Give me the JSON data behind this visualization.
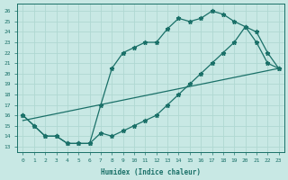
{
  "xlabel": "Humidex (Indice chaleur)",
  "bg_color": "#c8e8e4",
  "line_color": "#1a7068",
  "grid_color": "#afd8d2",
  "xlim": [
    -0.5,
    23.5
  ],
  "ylim": [
    12.5,
    26.7
  ],
  "xticks": [
    0,
    1,
    2,
    3,
    4,
    5,
    6,
    7,
    8,
    9,
    10,
    11,
    12,
    13,
    14,
    15,
    16,
    17,
    18,
    19,
    20,
    21,
    22,
    23
  ],
  "yticks": [
    13,
    14,
    15,
    16,
    17,
    18,
    19,
    20,
    21,
    22,
    23,
    24,
    25,
    26
  ],
  "line1_x": [
    0,
    1,
    2,
    3,
    4,
    5,
    6,
    7,
    8,
    9,
    10,
    11,
    12,
    13,
    14,
    15,
    16,
    17,
    18,
    19,
    20,
    21,
    22,
    23
  ],
  "line1_y": [
    16,
    15,
    14,
    14,
    13.3,
    13.3,
    13.3,
    17,
    20.5,
    22,
    22.5,
    23,
    23,
    24.3,
    25.3,
    25,
    25.3,
    26,
    25.7,
    25,
    24.5,
    23,
    21,
    20.5
  ],
  "line2_x": [
    0,
    1,
    2,
    3,
    4,
    5,
    6,
    7,
    8,
    9,
    10,
    11,
    12,
    13,
    14,
    15,
    16,
    17,
    18,
    19,
    20,
    21,
    22,
    23
  ],
  "line2_y": [
    16,
    15,
    14,
    14,
    13.3,
    13.3,
    13.3,
    14.3,
    14,
    14.5,
    15,
    15.5,
    16,
    17,
    18,
    19,
    20,
    21,
    22,
    23,
    24.5,
    24,
    22,
    20.5
  ],
  "line3_x": [
    0,
    23
  ],
  "line3_y": [
    15.5,
    20.5
  ],
  "marker_style": "*",
  "marker_size": 3.5,
  "line_width": 0.9,
  "tick_fontsize": 4.5,
  "xlabel_fontsize": 5.5
}
